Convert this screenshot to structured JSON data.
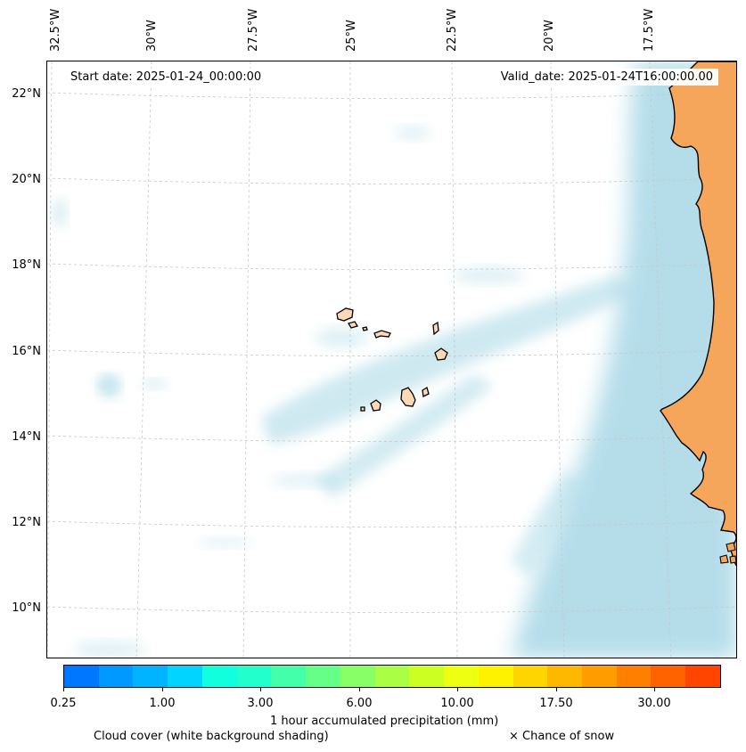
{
  "map": {
    "start_date": "Start date: 2025-01-24_00:00:00",
    "valid_date": "Valid_date: 2025-01-24T16:00:00.00",
    "lon_labels": [
      "32.5°W",
      "30°W",
      "27.5°W",
      "25°W",
      "22.5°W",
      "20°W",
      "17.5°W"
    ],
    "lat_labels": [
      "22°N",
      "20°N",
      "18°N",
      "16°N",
      "14°N",
      "12°N",
      "10°N"
    ],
    "land_color": "#f5a65b",
    "island_color": "#fcd9b6",
    "cloud_color": "#a8d8e6"
  },
  "colorbar": {
    "colors": [
      "#0077ff",
      "#0099ff",
      "#00b4ff",
      "#00d4ff",
      "#11ffdd",
      "#22ffcc",
      "#44ffaa",
      "#66ff88",
      "#88ff66",
      "#aaff44",
      "#ccff22",
      "#eeff11",
      "#fff200",
      "#ffd500",
      "#ffb800",
      "#ff9c00",
      "#ff7f00",
      "#ff6300",
      "#ff4500"
    ],
    "tick_labels": [
      "0.25",
      "1.00",
      "3.00",
      "6.00",
      "10.00",
      "17.50",
      "30.00"
    ],
    "label": "1 hour accumulated precipitation (mm)"
  },
  "legend": {
    "cloud_note": "Cloud cover (white background shading)",
    "snow_note": "× Chance of snow"
  }
}
